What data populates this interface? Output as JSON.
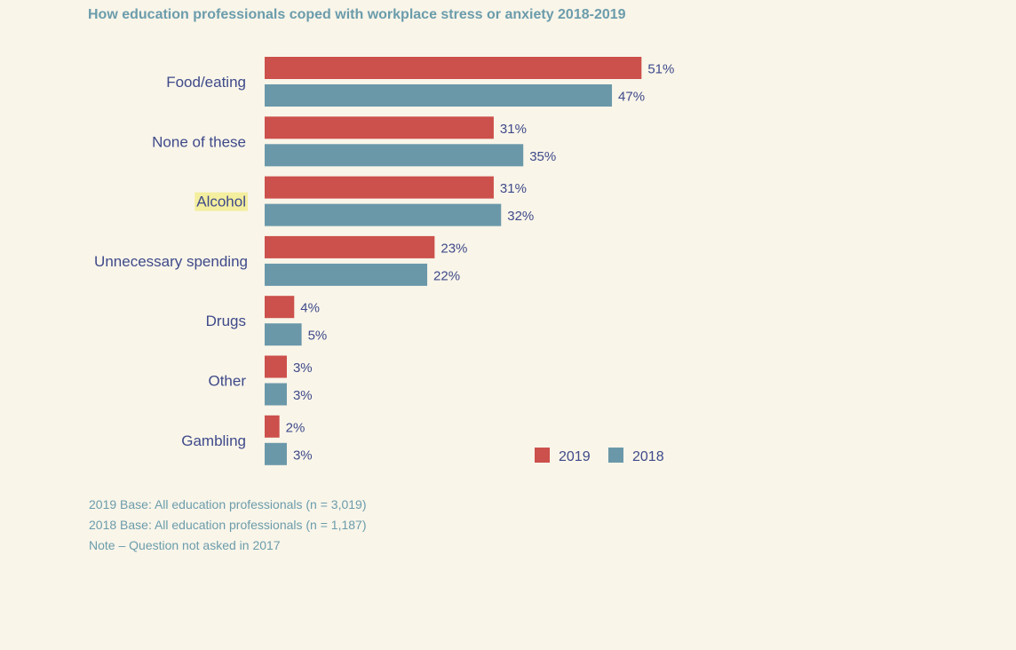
{
  "title": "How education professionals coped with workplace stress or anxiety 2018-2019",
  "highlight_color": "#f4ee9f",
  "colors": {
    "series_2019": "#cc504b",
    "series_2018": "#6a98a9",
    "category_text": "#3f4a8a",
    "value_text": "#3f4a8a",
    "note_text": "#6b9cab"
  },
  "chart_data": {
    "type": "bar",
    "orientation": "horizontal",
    "categories": [
      "Food/eating",
      "None of these",
      "Alcohol",
      "Unnecessary spending",
      "Drugs",
      "Other",
      "Gambling"
    ],
    "highlighted_category": "Alcohol",
    "series": [
      {
        "name": "2019",
        "color": "#cc504b",
        "values": [
          51,
          31,
          31,
          23,
          4,
          3,
          2
        ],
        "labels": [
          "51%",
          "31%",
          "31%",
          "23%",
          "4%",
          "3%",
          "2%"
        ]
      },
      {
        "name": "2018",
        "color": "#6a98a9",
        "values": [
          47,
          35,
          32,
          22,
          5,
          3,
          3
        ],
        "labels": [
          "47%",
          "35%",
          "32%",
          "22%",
          "5%",
          "3%",
          "3%"
        ]
      }
    ],
    "xlim": [
      0,
      60
    ],
    "grid": false,
    "legend_position": "bottom-right",
    "xlabel": "",
    "ylabel": ""
  },
  "notes": [
    "2019 Base: All education professionals (n = 3,019)",
    "2018 Base: All education professionals (n = 1,187)",
    "Note – Question not asked in 2017"
  ]
}
